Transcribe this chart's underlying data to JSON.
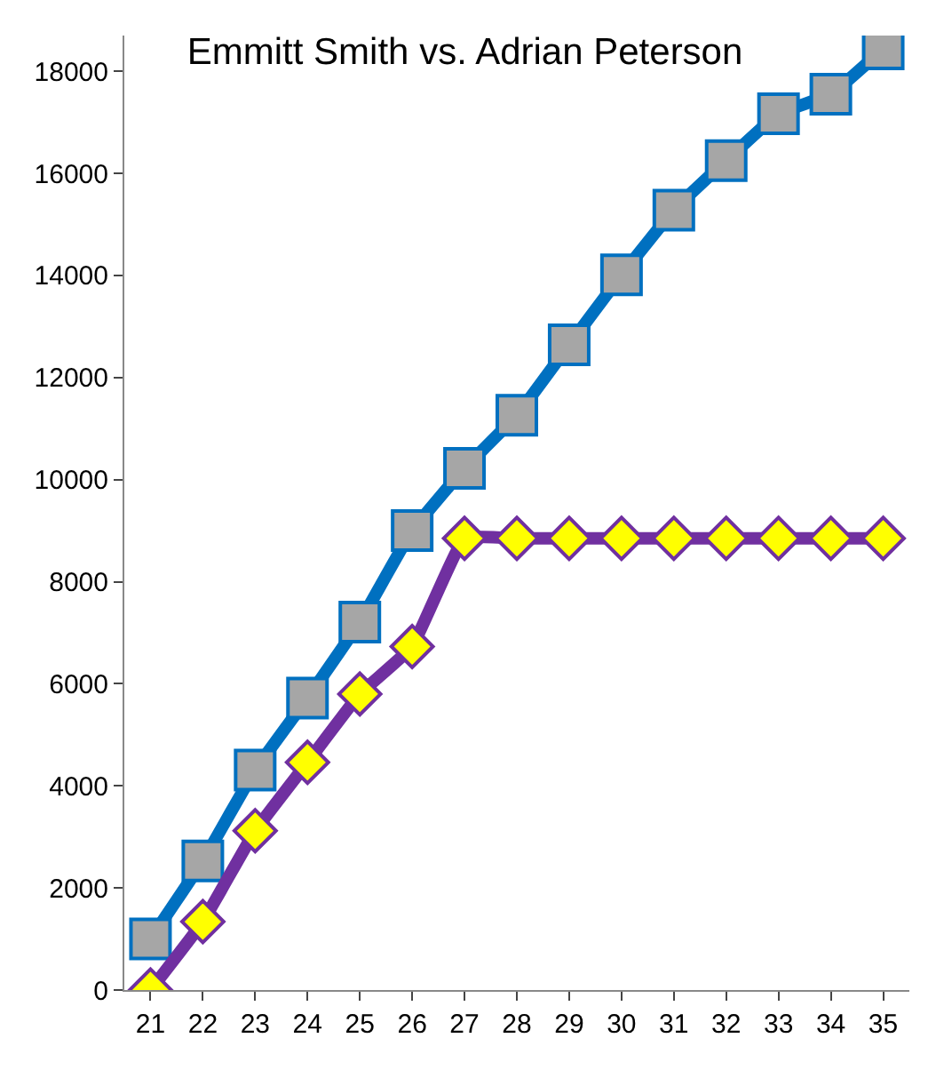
{
  "chart_data": {
    "type": "line",
    "title": "Emmitt Smith vs. Adrian Peterson",
    "categories": [
      "21",
      "22",
      "23",
      "24",
      "25",
      "26",
      "27",
      "28",
      "29",
      "30",
      "31",
      "32",
      "33",
      "34",
      "35"
    ],
    "series": [
      {
        "color": "#0070c0",
        "marker": "square",
        "colors": [
          "#a6a6a6",
          "#a6a6a6",
          "#a6a6a6",
          "#a6a6a6",
          "#a6a6a6",
          "#a6a6a6",
          "#a6a6a6",
          "#a6a6a6",
          "#a6a6a6",
          "#a6a6a6",
          "#a6a6a6",
          "#a6a6a6",
          "#a6a6a6",
          "#a6a6a6",
          "#a6a6a6"
        ],
        "values": [
          1000,
          2530,
          4310,
          5720,
          7210,
          9000,
          10220,
          11260,
          12640,
          14010,
          15280,
          16250,
          17170,
          17550,
          18440
        ]
      },
      {
        "color": "#7030a0",
        "marker": "diamond",
        "colors": [
          "#ffff00",
          "#ffff00",
          "#ffff00",
          "#ffff00",
          "#ffff00",
          "#ffff00",
          "#ffff00",
          "#ffff00",
          "#ffff00",
          "#ffff00",
          "#ffff00",
          "#ffff00",
          "#ffff00",
          "#ffff00",
          "#ffff00"
        ],
        "values": [
          0,
          1340,
          3120,
          4460,
          5800,
          6730,
          8850,
          8850,
          8850,
          8850,
          8850,
          8850,
          8850,
          8850,
          8850
        ]
      }
    ],
    "ylim": [
      0,
      18700
    ],
    "yticks": [
      0,
      2000,
      4000,
      6000,
      8000,
      10000,
      12000,
      14000,
      16000,
      18000
    ]
  }
}
